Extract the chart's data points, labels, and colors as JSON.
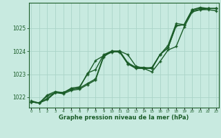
{
  "xlabel": "Graphe pression niveau de la mer (hPa)",
  "x_ticks": [
    0,
    1,
    2,
    3,
    4,
    5,
    6,
    7,
    8,
    9,
    10,
    11,
    12,
    13,
    14,
    15,
    16,
    17,
    18,
    19,
    20,
    21,
    22,
    23
  ],
  "ylim": [
    1021.55,
    1026.1
  ],
  "xlim": [
    -0.3,
    23.3
  ],
  "yticks": [
    1022,
    1023,
    1024,
    1025
  ],
  "bg_color": "#c8eae0",
  "grid_color": "#aad4c8",
  "line_color": "#1a5c28",
  "marker": "+",
  "line_width": 1.0,
  "marker_size": 3.5,
  "series": [
    [
      1021.8,
      1021.75,
      1021.9,
      1022.2,
      1022.15,
      1022.3,
      1022.35,
      1022.55,
      1022.75,
      1023.75,
      1024.0,
      1023.95,
      1023.45,
      1023.25,
      1023.25,
      1023.3,
      1023.85,
      1024.15,
      1025.1,
      1025.15,
      1025.75,
      1025.8,
      1025.85,
      1025.85
    ],
    [
      1021.8,
      1021.75,
      1022.05,
      1022.2,
      1022.2,
      1022.35,
      1022.4,
      1022.6,
      1022.8,
      1023.8,
      1024.0,
      1024.0,
      1023.5,
      1023.3,
      1023.25,
      1023.25,
      1023.85,
      1024.15,
      1025.1,
      1025.15,
      1025.8,
      1025.85,
      1025.85,
      1025.85
    ],
    [
      1021.8,
      1021.75,
      1021.95,
      1022.2,
      1022.2,
      1022.35,
      1022.4,
      1023.05,
      1023.2,
      1023.85,
      1024.0,
      1024.0,
      1023.85,
      1023.35,
      1023.25,
      1023.1,
      1023.55,
      1024.05,
      1024.2,
      1025.05,
      1025.7,
      1025.8,
      1025.8,
      1025.75
    ],
    [
      1021.85,
      1021.75,
      1022.1,
      1022.25,
      1022.2,
      1022.4,
      1022.45,
      1023.0,
      1023.6,
      1023.8,
      1023.95,
      1024.0,
      1023.45,
      1023.3,
      1023.3,
      1023.25,
      1023.85,
      1024.25,
      1025.2,
      1025.15,
      1025.8,
      1025.9,
      1025.85,
      1025.85
    ]
  ]
}
